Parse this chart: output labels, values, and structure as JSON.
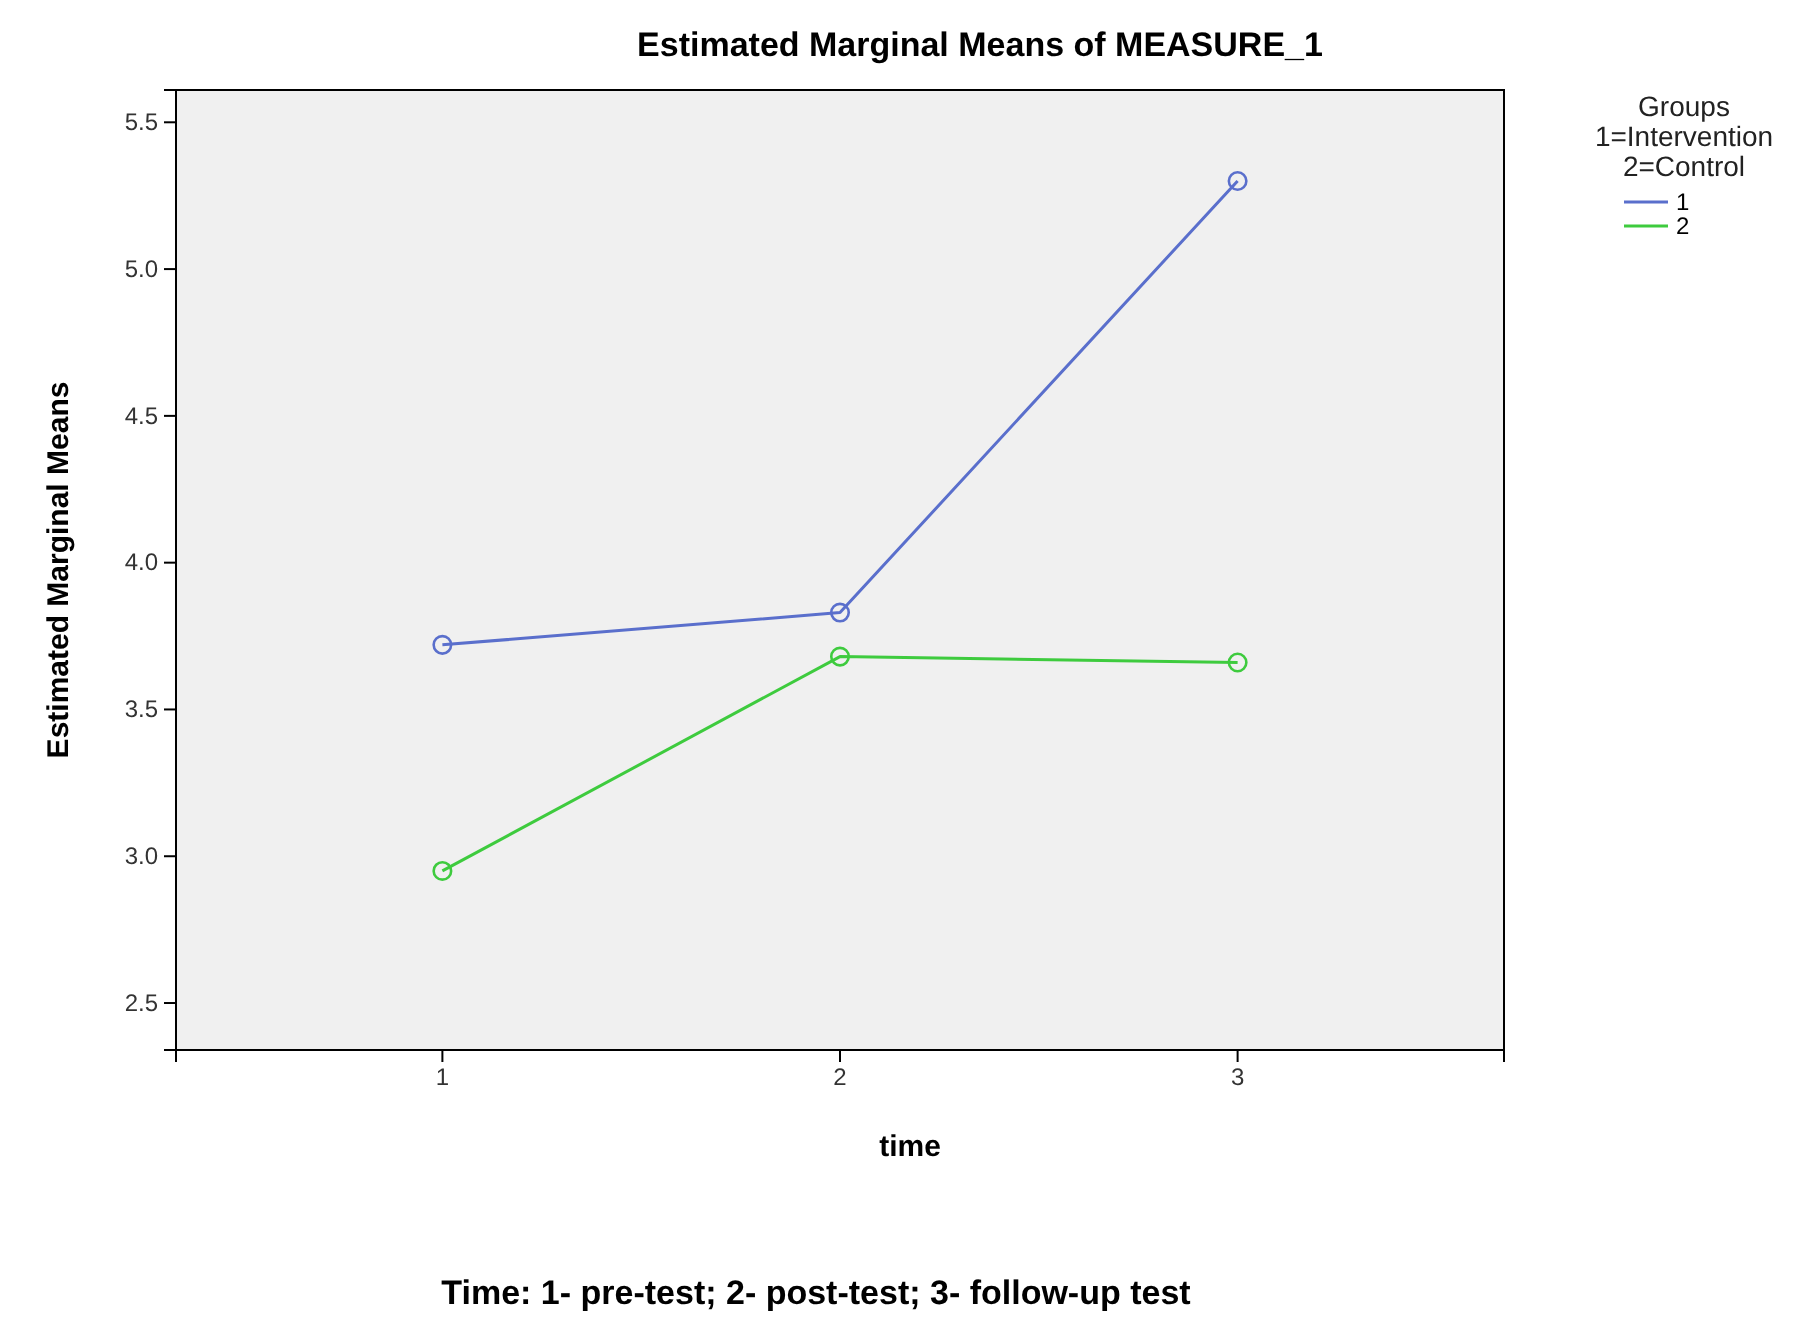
{
  "chart_data": {
    "type": "line",
    "title": "Estimated Marginal Means of MEASURE_1",
    "xlabel": "time",
    "ylabel": "Estimated Marginal Means",
    "legend_title": "Groups\n1=Intervention\n2=Control",
    "annotations": [
      "Time: 1- pre-test; 2- post-test; 3- follow-up test"
    ],
    "x": [
      1,
      2,
      3
    ],
    "xlim": [
      0.33,
      3.67
    ],
    "xticks": [
      1,
      2,
      3
    ],
    "ylim": [
      2.34,
      5.61
    ],
    "yticks": [
      {
        "value": 2.5,
        "label": "2.5"
      },
      {
        "value": 3,
        "label": "3.0"
      },
      {
        "value": 3.5,
        "label": "3.5"
      },
      {
        "value": 4,
        "label": "4.0"
      },
      {
        "value": 4.5,
        "label": "4.5"
      },
      {
        "value": 5,
        "label": "5.0"
      },
      {
        "value": 5.5,
        "label": "5.5"
      }
    ],
    "series": [
      {
        "name": "1",
        "color": "#5a6fcc",
        "values": [
          3.72,
          3.83,
          5.3
        ]
      },
      {
        "name": "2",
        "color": "#3ecb3e",
        "values": [
          2.95,
          3.68,
          3.66
        ]
      }
    ],
    "marker": "circle",
    "line_style": "solid",
    "legend": "top right",
    "grid": false
  }
}
